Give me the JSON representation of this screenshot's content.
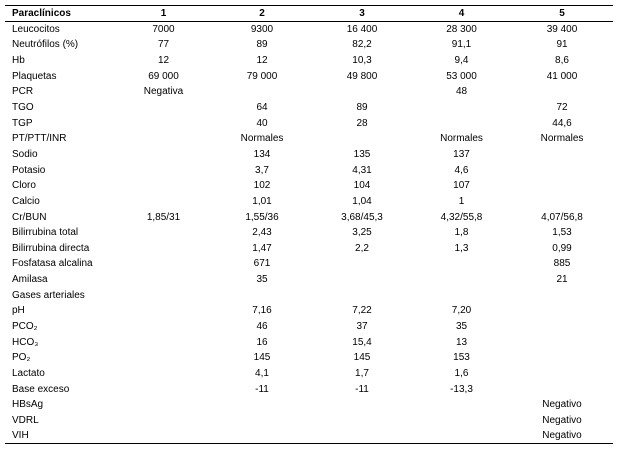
{
  "table": {
    "header": [
      "Paraclínicos",
      "1",
      "2",
      "3",
      "4",
      "5"
    ],
    "rows": [
      [
        "Leucocitos",
        "7000",
        "9300",
        "16 400",
        "28 300",
        "39 400"
      ],
      [
        "Neutrófilos (%)",
        "77",
        "89",
        "82,2",
        "91,1",
        "91"
      ],
      [
        "Hb",
        "12",
        "12",
        "10,3",
        "9,4",
        "8,6"
      ],
      [
        "Plaquetas",
        "69 000",
        "79 000",
        "49 800",
        "53 000",
        "41 000"
      ],
      [
        "PCR",
        "Negativa",
        null,
        null,
        "48",
        null
      ],
      [
        "TGO",
        null,
        "64",
        "89",
        null,
        "72"
      ],
      [
        "TGP",
        null,
        "40",
        "28",
        null,
        "44,6"
      ],
      [
        "PT/PTT/INR",
        null,
        "Normales",
        null,
        "Normales",
        "Normales"
      ],
      [
        "Sodio",
        null,
        "134",
        "135",
        "137",
        null
      ],
      [
        "Potasio",
        null,
        "3,7",
        "4,31",
        "4,6",
        null
      ],
      [
        "Cloro",
        null,
        "102",
        "104",
        "107",
        null
      ],
      [
        "Calcio",
        null,
        "1,01",
        "1,04",
        "1",
        null
      ],
      [
        "Cr/BUN",
        "1,85/31",
        "1,55/36",
        "3,68/45,3",
        "4,32/55,8",
        "4,07/56,8"
      ],
      [
        "Bilirrubina total",
        null,
        "2,43",
        "3,25",
        "1,8",
        "1,53"
      ],
      [
        "Bilirrubina directa",
        null,
        "1,47",
        "2,2",
        "1,3",
        "0,99"
      ],
      [
        "Fosfatasa alcalina",
        null,
        "671",
        null,
        null,
        "885"
      ],
      [
        "Amilasa",
        null,
        "35",
        null,
        null,
        "21"
      ],
      [
        "Gases arteriales",
        null,
        null,
        null,
        null,
        null
      ],
      [
        "pH",
        null,
        "7,16",
        "7,22",
        "7,20",
        null
      ],
      [
        "PCO₂",
        null,
        "46",
        "37",
        "35",
        null
      ],
      [
        "HCO₃",
        null,
        "16",
        "15,4",
        "13",
        null
      ],
      [
        "PO₂",
        null,
        "145",
        "145",
        "153",
        null
      ],
      [
        "Lactato",
        null,
        "4,1",
        "1,7",
        "1,6",
        null
      ],
      [
        "Base exceso",
        null,
        "-11",
        "-11",
        "-13,3",
        null
      ],
      [
        "HBsAg",
        null,
        null,
        null,
        null,
        "Negativo"
      ],
      [
        "VDRL",
        null,
        null,
        null,
        null,
        "Negativo"
      ],
      [
        "VIH",
        null,
        null,
        null,
        null,
        "Negativo"
      ]
    ]
  }
}
